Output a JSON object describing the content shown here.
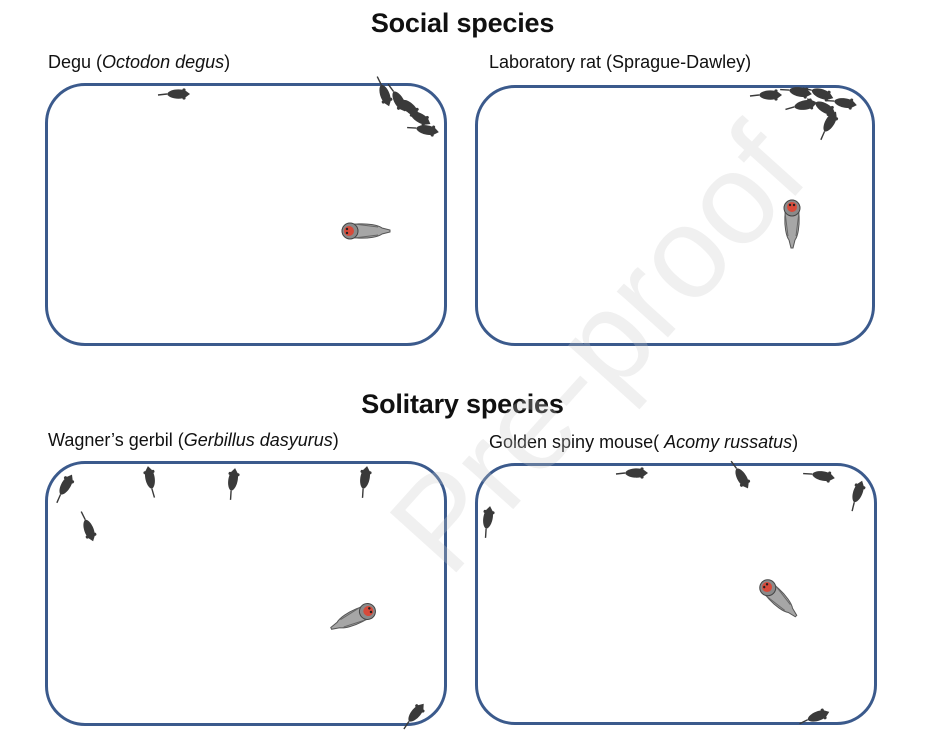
{
  "sections": {
    "social": "Social species",
    "solitary": "Solitary species"
  },
  "panels": {
    "degu": {
      "name": "Degu (",
      "species": "Octodon degus",
      "close": ")"
    },
    "rat": {
      "name": "Laboratory rat (Sprague-Dawley)"
    },
    "gerbil": {
      "name": "Wagner’s gerbil (",
      "species": "Gerbillus dasyurus",
      "close": ")"
    },
    "spiny": {
      "name": "Golden spiny mouse( ",
      "species": "Acomy russatus",
      "close": ")"
    }
  },
  "watermark": "Pre-proof",
  "colors": {
    "arena_border": "#3b5a8c",
    "rodent": "#3a3a3a",
    "owl_body": "#9a9a9a",
    "owl_face": "#d84a3a"
  }
}
